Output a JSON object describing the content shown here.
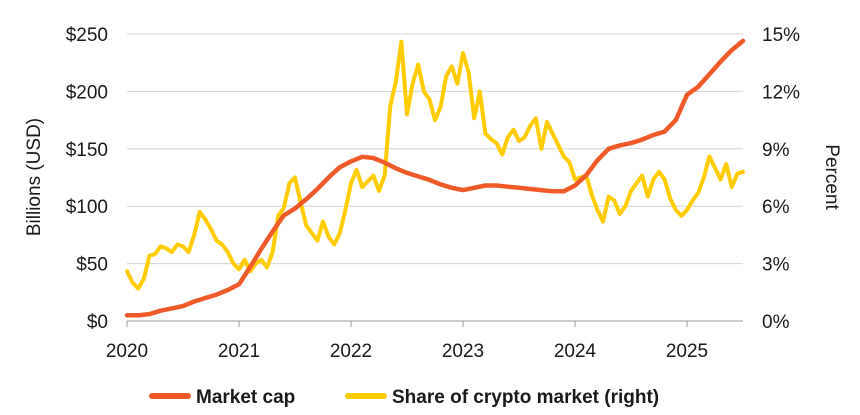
{
  "chart_data": {
    "type": "line",
    "title": "",
    "ylabel_left": "Billions (USD)",
    "ylabel_right": "Percent",
    "xlabel": "",
    "x_ticks": [
      "2020",
      "2021",
      "2022",
      "2023",
      "2024",
      "2025"
    ],
    "x_range": [
      2020.0,
      2025.5
    ],
    "ylim_left": [
      0,
      250
    ],
    "ylim_right": [
      0,
      15
    ],
    "y_ticks_left": [
      "$0",
      "$50",
      "$100",
      "$150",
      "$200",
      "$250"
    ],
    "y_ticks_right": [
      "0%",
      "3%",
      "6%",
      "9%",
      "12%",
      "15%"
    ],
    "grid": "horizontal",
    "legend_position": "bottom",
    "series": [
      {
        "name": "Market cap",
        "axis": "left",
        "color": "#f05a28",
        "x": [
          2020.0,
          2020.1,
          2020.2,
          2020.3,
          2020.4,
          2020.5,
          2020.6,
          2020.7,
          2020.8,
          2020.9,
          2021.0,
          2021.1,
          2021.2,
          2021.3,
          2021.4,
          2021.5,
          2021.6,
          2021.7,
          2021.8,
          2021.9,
          2022.0,
          2022.1,
          2022.2,
          2022.3,
          2022.4,
          2022.5,
          2022.6,
          2022.7,
          2022.8,
          2022.9,
          2023.0,
          2023.1,
          2023.2,
          2023.3,
          2023.4,
          2023.5,
          2023.6,
          2023.7,
          2023.8,
          2023.9,
          2024.0,
          2024.1,
          2024.2,
          2024.3,
          2024.4,
          2024.5,
          2024.6,
          2024.7,
          2024.8,
          2024.9,
          2025.0,
          2025.1,
          2025.2,
          2025.3,
          2025.4,
          2025.5
        ],
        "values": [
          5,
          5,
          6,
          9,
          11,
          13,
          17,
          20,
          23,
          27,
          32,
          47,
          63,
          78,
          92,
          98,
          106,
          115,
          125,
          134,
          139,
          143,
          142,
          138,
          133,
          129,
          126,
          123,
          119,
          116,
          114,
          116,
          118,
          118,
          117,
          116,
          115,
          114,
          113,
          113,
          118,
          127,
          140,
          150,
          153,
          155,
          158,
          162,
          165,
          175,
          197,
          204,
          215,
          226,
          236,
          244
        ]
      },
      {
        "name": "Share of crypto market (right)",
        "axis": "right",
        "color": "#ffcc00",
        "x": [
          2020.0,
          2020.05,
          2020.1,
          2020.15,
          2020.2,
          2020.25,
          2020.3,
          2020.35,
          2020.4,
          2020.45,
          2020.5,
          2020.55,
          2020.6,
          2020.65,
          2020.7,
          2020.75,
          2020.8,
          2020.85,
          2020.9,
          2020.95,
          2021.0,
          2021.05,
          2021.1,
          2021.15,
          2021.2,
          2021.25,
          2021.3,
          2021.35,
          2021.4,
          2021.45,
          2021.5,
          2021.55,
          2021.6,
          2021.65,
          2021.7,
          2021.75,
          2021.8,
          2021.85,
          2021.9,
          2021.95,
          2022.0,
          2022.05,
          2022.1,
          2022.15,
          2022.2,
          2022.25,
          2022.3,
          2022.35,
          2022.4,
          2022.45,
          2022.5,
          2022.55,
          2022.6,
          2022.65,
          2022.7,
          2022.75,
          2022.8,
          2022.85,
          2022.9,
          2022.95,
          2023.0,
          2023.05,
          2023.1,
          2023.15,
          2023.2,
          2023.25,
          2023.3,
          2023.35,
          2023.4,
          2023.45,
          2023.5,
          2023.55,
          2023.6,
          2023.65,
          2023.7,
          2023.75,
          2023.8,
          2023.85,
          2023.9,
          2023.95,
          2024.0,
          2024.05,
          2024.1,
          2024.15,
          2024.2,
          2024.25,
          2024.3,
          2024.35,
          2024.4,
          2024.45,
          2024.5,
          2024.55,
          2024.6,
          2024.65,
          2024.7,
          2024.75,
          2024.8,
          2024.85,
          2024.9,
          2024.95,
          2025.0,
          2025.05,
          2025.1,
          2025.15,
          2025.2,
          2025.25,
          2025.3,
          2025.35,
          2025.4,
          2025.45,
          2025.5
        ],
        "values": [
          2.6,
          2.0,
          1.7,
          2.2,
          3.4,
          3.5,
          3.9,
          3.8,
          3.6,
          4.0,
          3.9,
          3.6,
          4.5,
          5.7,
          5.3,
          4.8,
          4.2,
          4.0,
          3.6,
          3.0,
          2.7,
          3.2,
          2.6,
          3.0,
          3.2,
          2.8,
          3.6,
          5.5,
          5.9,
          7.2,
          7.5,
          6.2,
          5.0,
          4.6,
          4.2,
          5.2,
          4.4,
          4.0,
          4.6,
          5.8,
          7.2,
          7.9,
          7.0,
          7.3,
          7.6,
          6.8,
          7.6,
          11.2,
          12.5,
          14.6,
          10.8,
          12.4,
          13.4,
          12.0,
          11.6,
          10.5,
          11.2,
          12.8,
          13.3,
          12.4,
          14.0,
          13.0,
          10.6,
          12.0,
          9.8,
          9.5,
          9.3,
          8.7,
          9.6,
          10.0,
          9.4,
          9.6,
          10.2,
          10.6,
          9.0,
          10.4,
          9.8,
          9.2,
          8.6,
          8.3,
          7.4,
          7.5,
          7.6,
          6.6,
          5.8,
          5.2,
          6.5,
          6.3,
          5.6,
          6.0,
          6.8,
          7.2,
          7.6,
          6.5,
          7.4,
          7.8,
          7.4,
          6.4,
          5.8,
          5.5,
          5.8,
          6.3,
          6.7,
          7.5,
          8.6,
          8.0,
          7.4,
          8.2,
          7.0,
          7.7,
          7.8
        ]
      }
    ]
  }
}
